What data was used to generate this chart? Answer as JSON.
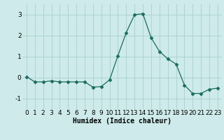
{
  "x": [
    0,
    1,
    2,
    3,
    4,
    5,
    6,
    7,
    8,
    9,
    10,
    11,
    12,
    13,
    14,
    15,
    16,
    17,
    18,
    19,
    20,
    21,
    22,
    23
  ],
  "y": [
    0.05,
    -0.2,
    -0.2,
    -0.15,
    -0.2,
    -0.2,
    -0.2,
    -0.2,
    -0.45,
    -0.42,
    -0.1,
    1.05,
    2.15,
    3.0,
    3.05,
    1.9,
    1.25,
    0.9,
    0.65,
    -0.35,
    -0.75,
    -0.75,
    -0.55,
    -0.5
  ],
  "line_color": "#1a6b5e",
  "marker": "D",
  "marker_size": 2.5,
  "bg_color": "#ceeaea",
  "grid_color": "#aacfcf",
  "xlabel": "Humidex (Indice chaleur)",
  "xlabel_fontsize": 7,
  "tick_fontsize": 6.5,
  "xlim": [
    -0.5,
    23.5
  ],
  "ylim": [
    -1.5,
    3.5
  ],
  "yticks": [
    -1,
    0,
    1,
    2,
    3
  ],
  "xticks": [
    0,
    1,
    2,
    3,
    4,
    5,
    6,
    7,
    8,
    9,
    10,
    11,
    12,
    13,
    14,
    15,
    16,
    17,
    18,
    19,
    20,
    21,
    22,
    23
  ]
}
